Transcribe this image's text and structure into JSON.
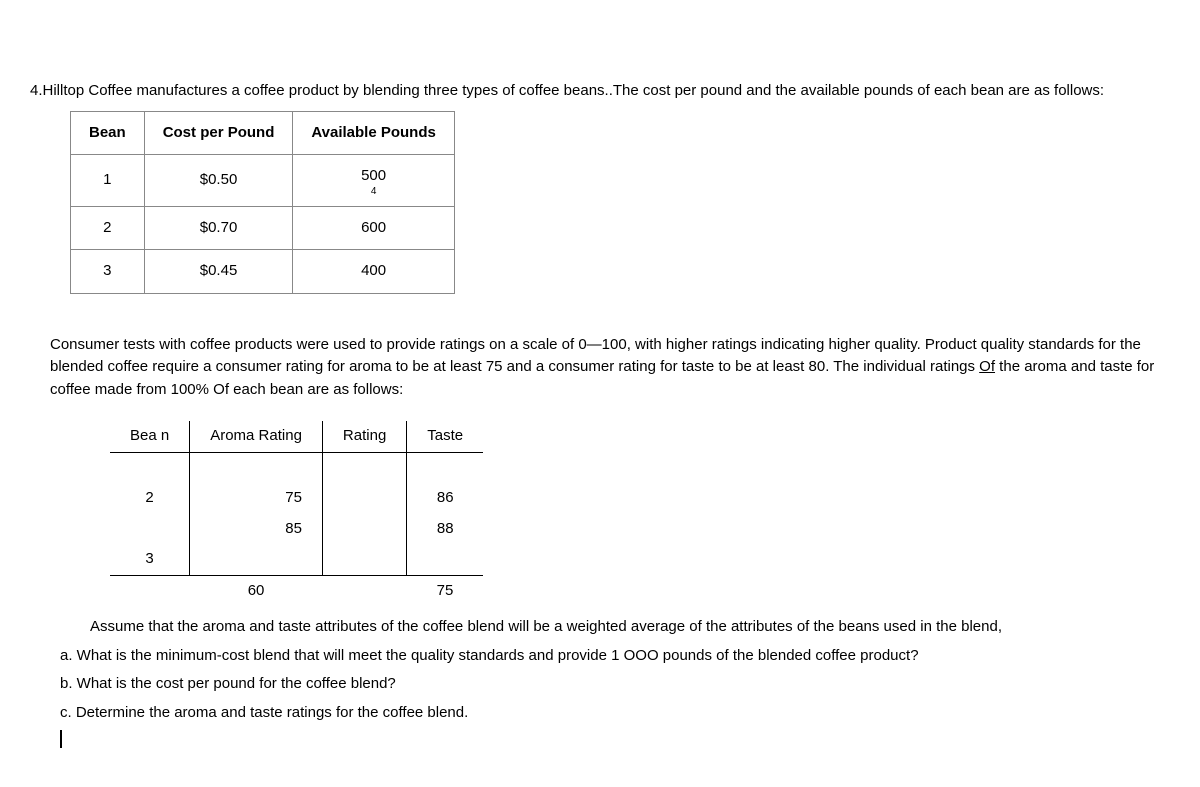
{
  "intro": "4.Hilltop Coffee manufactures a coffee product by blending three types of coffee beans..The cost per pound and the available pounds of each bean are as follows:",
  "table1": {
    "headers": [
      "Bean",
      "Cost per Pound",
      "Available Pounds"
    ],
    "rows": [
      {
        "bean": "1",
        "cost": "$0.50",
        "pounds": "500",
        "sub": "4"
      },
      {
        "bean": "2",
        "cost": "$0.70",
        "pounds": "600",
        "sub": ""
      },
      {
        "bean": "3",
        "cost": "$0.45",
        "pounds": "400",
        "sub": ""
      }
    ]
  },
  "paragraph2": {
    "part1": "Consumer tests with coffee products were used to provide ratings on a scale of 0—100, with higher ratings indicating higher quality. Product quality standards for the blended coffee require a consumer rating for aroma to be at least 75 and a consumer rating for taste to be at least 80. The individual ratings ",
    "underlined": "Of",
    "part2": " the aroma and taste for coffee made from 100% Of each bean are as follows:"
  },
  "table2": {
    "headers": {
      "bean": "Bea n",
      "aroma": "Aroma Rating",
      "rating": "Rating",
      "taste": "Taste"
    },
    "rows": [
      {
        "bean": "",
        "aroma": "",
        "taste": ""
      },
      {
        "bean": "2",
        "aroma": "75",
        "taste": "86"
      },
      {
        "bean": "",
        "aroma": "85",
        "taste": "88"
      },
      {
        "bean": "3",
        "aroma": "",
        "taste": ""
      }
    ],
    "lastrow": {
      "aroma": "60",
      "taste": "75"
    }
  },
  "assume": "Assume that the aroma and taste attributes of the coffee blend will be a weighted average of the attributes of the beans used in the blend,",
  "questions": {
    "a": "a. What is the minimum-cost blend that will meet the quality standards and provide 1 OOO pounds of the blended coffee product?",
    "b": "b. What is the cost per pound for the coffee blend?",
    "c": "c. Determine the aroma and taste ratings for the coffee blend."
  },
  "styling": {
    "background_color": "#ffffff",
    "text_color": "#000000",
    "border_color": "#888888",
    "font_family": "Arial",
    "base_font_size": 15
  }
}
